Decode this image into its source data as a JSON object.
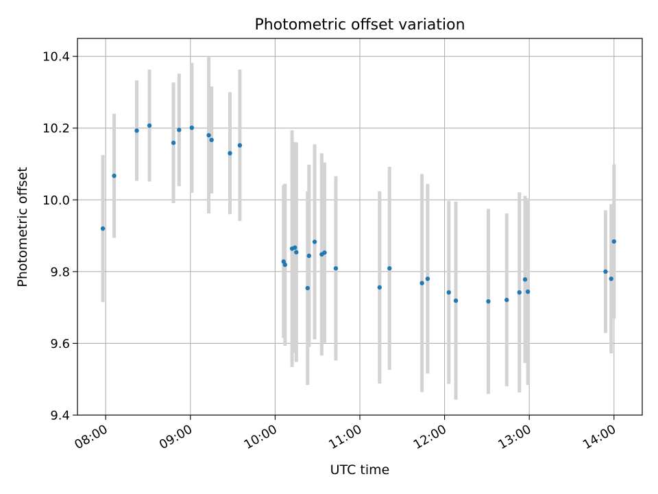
{
  "chart_data": {
    "type": "scatter",
    "title": "Photometric offset variation",
    "xlabel": "UTC time",
    "ylabel": "Photometric offset",
    "xlim": [
      "07:40",
      "14:20"
    ],
    "ylim": [
      9.4,
      10.45
    ],
    "x_ticks": [
      "08:00",
      "09:00",
      "10:00",
      "11:00",
      "12:00",
      "13:00",
      "14:00"
    ],
    "y_ticks": [
      "9.4",
      "9.6",
      "9.8",
      "10.0",
      "10.2",
      "10.4"
    ],
    "grid": true,
    "legend": "none",
    "colors": {
      "marker": "#1f77b4",
      "errorbar": "#d3d3d3",
      "grid": "#b0b0b0"
    },
    "points": [
      {
        "t": "07:58",
        "y": 9.92,
        "err": 0.205
      },
      {
        "t": "08:06",
        "y": 10.067,
        "err": 0.173
      },
      {
        "t": "08:22",
        "y": 10.193,
        "err": 0.14
      },
      {
        "t": "08:31",
        "y": 10.207,
        "err": 0.156
      },
      {
        "t": "08:48",
        "y": 10.159,
        "err": 0.168
      },
      {
        "t": "08:52",
        "y": 10.195,
        "err": 0.157
      },
      {
        "t": "09:01",
        "y": 10.201,
        "err": 0.181
      },
      {
        "t": "09:13",
        "y": 10.18,
        "err": 0.218
      },
      {
        "t": "09:15",
        "y": 10.167,
        "err": 0.149
      },
      {
        "t": "09:28",
        "y": 10.13,
        "err": 0.17
      },
      {
        "t": "09:35",
        "y": 10.152,
        "err": 0.211
      },
      {
        "t": "10:06",
        "y": 9.828,
        "err": 0.213
      },
      {
        "t": "10:07",
        "y": 9.819,
        "err": 0.226
      },
      {
        "t": "10:12",
        "y": 9.864,
        "err": 0.33
      },
      {
        "t": "10:14",
        "y": 9.867,
        "err": 0.294
      },
      {
        "t": "10:15",
        "y": 9.854,
        "err": 0.306
      },
      {
        "t": "10:23",
        "y": 9.754,
        "err": 0.27
      },
      {
        "t": "10:24",
        "y": 9.844,
        "err": 0.254
      },
      {
        "t": "10:28",
        "y": 9.883,
        "err": 0.272
      },
      {
        "t": "10:33",
        "y": 9.848,
        "err": 0.282
      },
      {
        "t": "10:35",
        "y": 9.853,
        "err": 0.251
      },
      {
        "t": "10:43",
        "y": 9.809,
        "err": 0.257
      },
      {
        "t": "11:14",
        "y": 9.756,
        "err": 0.268
      },
      {
        "t": "11:21",
        "y": 9.809,
        "err": 0.283
      },
      {
        "t": "11:44",
        "y": 9.768,
        "err": 0.304
      },
      {
        "t": "11:48",
        "y": 9.78,
        "err": 0.264
      },
      {
        "t": "12:03",
        "y": 9.742,
        "err": 0.255
      },
      {
        "t": "12:08",
        "y": 9.719,
        "err": 0.276
      },
      {
        "t": "12:31",
        "y": 9.717,
        "err": 0.258
      },
      {
        "t": "12:44",
        "y": 9.721,
        "err": 0.241
      },
      {
        "t": "12:53",
        "y": 9.742,
        "err": 0.279
      },
      {
        "t": "12:57",
        "y": 9.778,
        "err": 0.233
      },
      {
        "t": "12:59",
        "y": 9.744,
        "err": 0.26
      },
      {
        "t": "13:54",
        "y": 9.8,
        "err": 0.171
      },
      {
        "t": "13:58",
        "y": 9.78,
        "err": 0.208
      },
      {
        "t": "14:00",
        "y": 9.884,
        "err": 0.215
      }
    ]
  }
}
